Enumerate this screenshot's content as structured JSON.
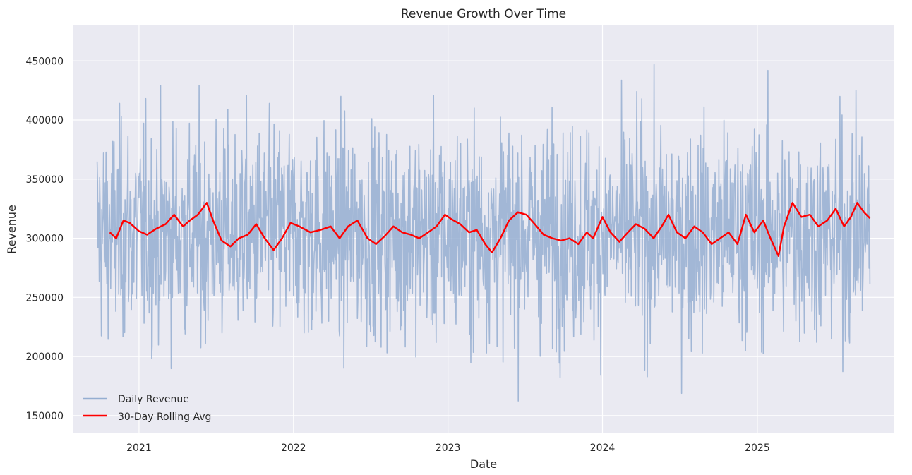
{
  "chart_data": {
    "type": "line",
    "title": "Revenue Growth Over Time",
    "xlabel": "Date",
    "ylabel": "Revenue",
    "x_range": [
      "2020-09-24",
      "2025-09-24"
    ],
    "xlim": [
      "2020-07-30",
      "2025-11-19"
    ],
    "ylim": [
      135000,
      480000
    ],
    "x_ticks": [
      "2021-01-01",
      "2022-01-01",
      "2023-01-01",
      "2024-01-01",
      "2025-01-01"
    ],
    "x_tick_labels": [
      "2021",
      "2022",
      "2023",
      "2024",
      "2025"
    ],
    "y_ticks": [
      150000,
      200000,
      250000,
      300000,
      350000,
      400000,
      450000
    ],
    "y_tick_labels": [
      "150000",
      "200000",
      "250000",
      "300000",
      "350000",
      "400000",
      "450000"
    ],
    "grid": true,
    "legend_position": "lower-left",
    "background_color": "#eaeaf2",
    "series": [
      {
        "name": "Daily Revenue",
        "color": "#95aed1",
        "frequency": "daily",
        "mean": 305000,
        "min": 151000,
        "max": 468000,
        "values_approx": "dense daily series fluctuating roughly between 200000 and 420000, extremes 151000 (late 2021) and 468000 (mid 2025)"
      },
      {
        "name": "30-Day Rolling Avg",
        "color": "#ff0000",
        "frequency": "daily, 30-day rolling mean",
        "x": [
          "2020-10-24",
          "2020-11-08",
          "2020-11-25",
          "2020-12-10",
          "2021-01-01",
          "2021-01-20",
          "2021-02-10",
          "2021-03-05",
          "2021-03-25",
          "2021-04-15",
          "2021-05-01",
          "2021-05-20",
          "2021-06-10",
          "2021-06-25",
          "2021-07-15",
          "2021-08-05",
          "2021-08-25",
          "2021-09-15",
          "2021-10-05",
          "2021-10-25",
          "2021-11-15",
          "2021-12-05",
          "2021-12-25",
          "2022-01-15",
          "2022-02-10",
          "2022-03-05",
          "2022-03-30",
          "2022-04-20",
          "2022-05-10",
          "2022-06-01",
          "2022-06-25",
          "2022-07-15",
          "2022-08-05",
          "2022-08-25",
          "2022-09-15",
          "2022-10-05",
          "2022-10-25",
          "2022-11-15",
          "2022-12-05",
          "2022-12-25",
          "2023-01-10",
          "2023-01-30",
          "2023-02-20",
          "2023-03-10",
          "2023-03-30",
          "2023-04-15",
          "2023-05-05",
          "2023-05-25",
          "2023-06-15",
          "2023-07-05",
          "2023-07-25",
          "2023-08-15",
          "2023-09-05",
          "2023-09-25",
          "2023-10-15",
          "2023-11-05",
          "2023-11-25",
          "2023-12-10",
          "2024-01-01",
          "2024-01-20",
          "2024-02-10",
          "2024-03-01",
          "2024-03-20",
          "2024-04-10",
          "2024-05-01",
          "2024-05-20",
          "2024-06-05",
          "2024-06-25",
          "2024-07-15",
          "2024-08-05",
          "2024-08-25",
          "2024-09-15",
          "2024-10-05",
          "2024-10-25",
          "2024-11-15",
          "2024-12-05",
          "2024-12-25",
          "2025-01-15",
          "2025-02-01",
          "2025-02-20",
          "2025-03-05",
          "2025-03-25",
          "2025-04-15",
          "2025-05-05",
          "2025-05-25",
          "2025-06-15",
          "2025-07-05",
          "2025-07-25",
          "2025-08-10",
          "2025-08-25",
          "2025-09-10",
          "2025-09-24"
        ],
        "values": [
          305000,
          300000,
          315000,
          313000,
          306000,
          303000,
          308000,
          312000,
          320000,
          310000,
          315000,
          320000,
          330000,
          315000,
          298000,
          293000,
          300000,
          303000,
          312000,
          300000,
          290000,
          300000,
          313000,
          310000,
          305000,
          307000,
          310000,
          300000,
          310000,
          315000,
          300000,
          295000,
          302000,
          310000,
          305000,
          303000,
          300000,
          305000,
          310000,
          320000,
          316000,
          312000,
          305000,
          307000,
          295000,
          288000,
          300000,
          315000,
          322000,
          320000,
          312000,
          303000,
          300000,
          298000,
          300000,
          295000,
          305000,
          300000,
          318000,
          305000,
          297000,
          305000,
          312000,
          308000,
          300000,
          310000,
          320000,
          305000,
          300000,
          310000,
          305000,
          295000,
          300000,
          305000,
          295000,
          320000,
          305000,
          315000,
          300000,
          285000,
          310000,
          330000,
          318000,
          320000,
          310000,
          315000,
          325000,
          310000,
          318000,
          330000,
          322000,
          317000
        ]
      }
    ]
  }
}
